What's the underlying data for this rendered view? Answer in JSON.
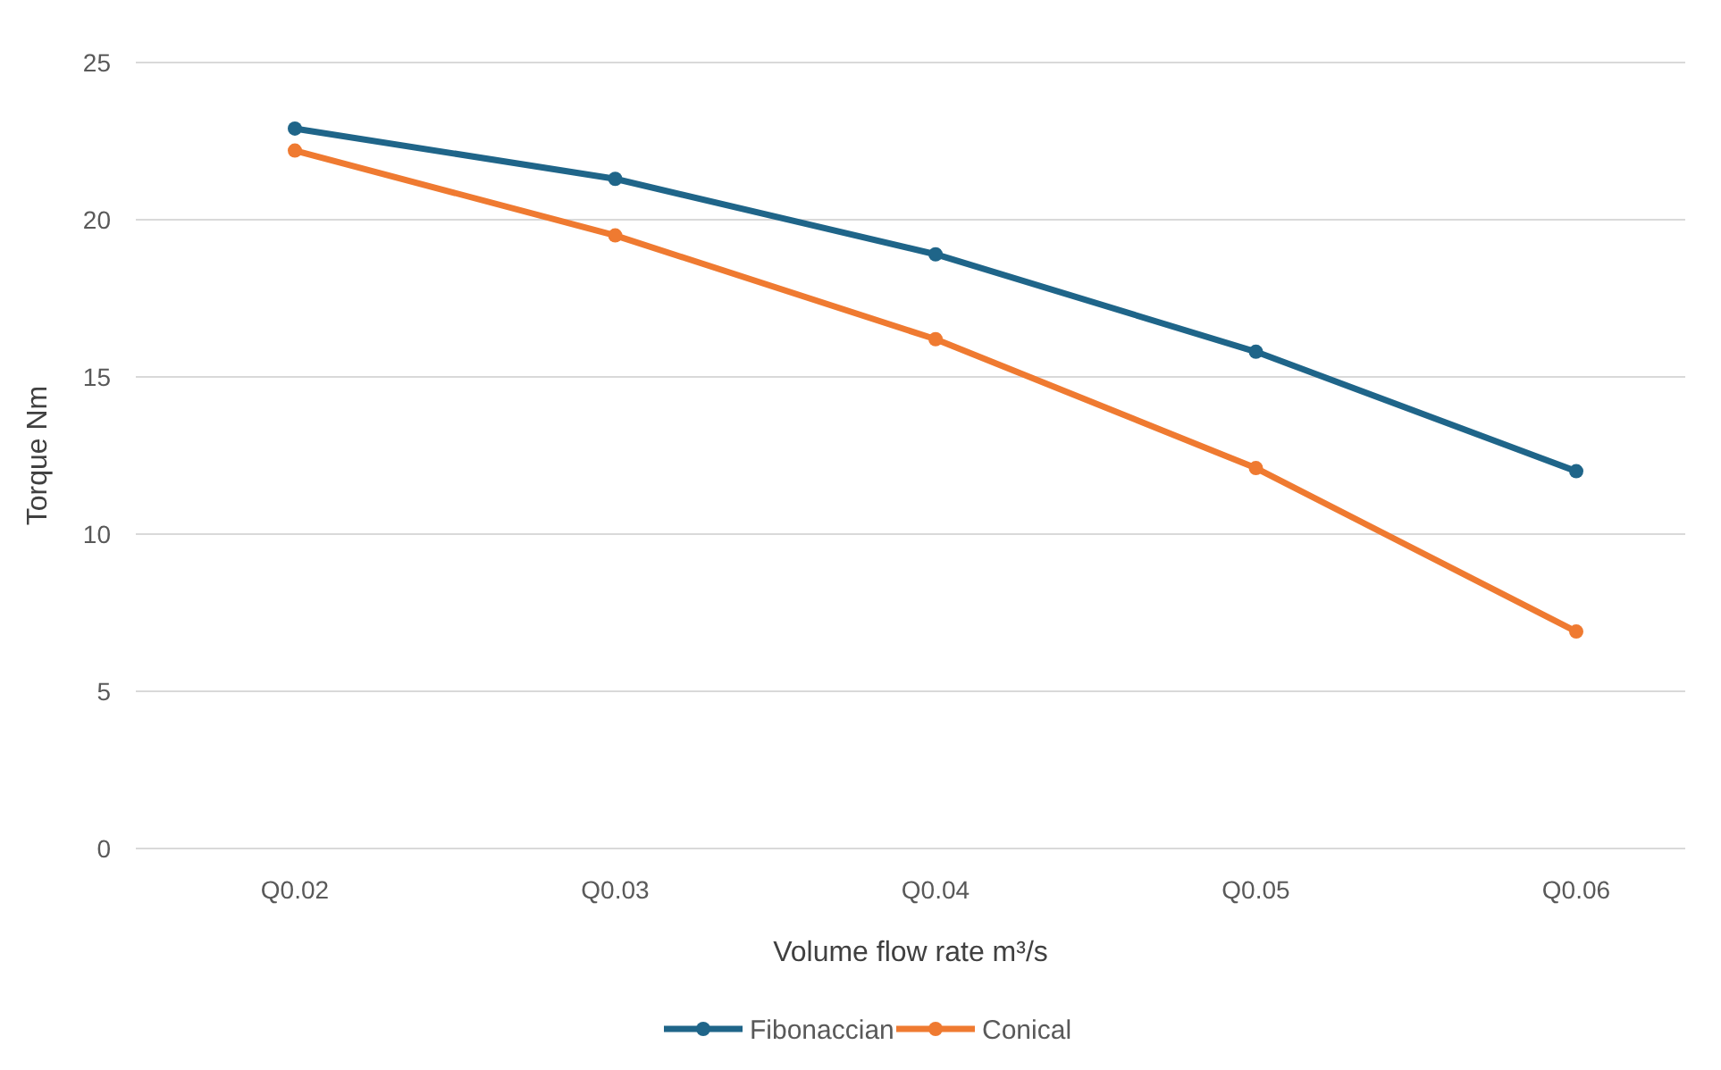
{
  "chart_data": {
    "type": "line",
    "xlabel": "Volume flow rate m³/s",
    "ylabel": "Torque Nm",
    "categories": [
      "Q0.02",
      "Q0.03",
      "Q0.04",
      "Q0.05",
      "Q0.06"
    ],
    "series": [
      {
        "name": "Fibonaccian",
        "color": "#1f6589",
        "values": [
          22.9,
          21.3,
          18.9,
          15.8,
          12.0
        ]
      },
      {
        "name": "Conical",
        "color": "#ef7a31",
        "values": [
          22.2,
          19.5,
          16.2,
          12.1,
          6.9
        ]
      }
    ],
    "ylim": [
      0,
      25
    ],
    "yticks": [
      0,
      5,
      10,
      15,
      20,
      25
    ],
    "grid": "y",
    "legend": "bottom",
    "marker": "circle",
    "line_style": "solid"
  }
}
